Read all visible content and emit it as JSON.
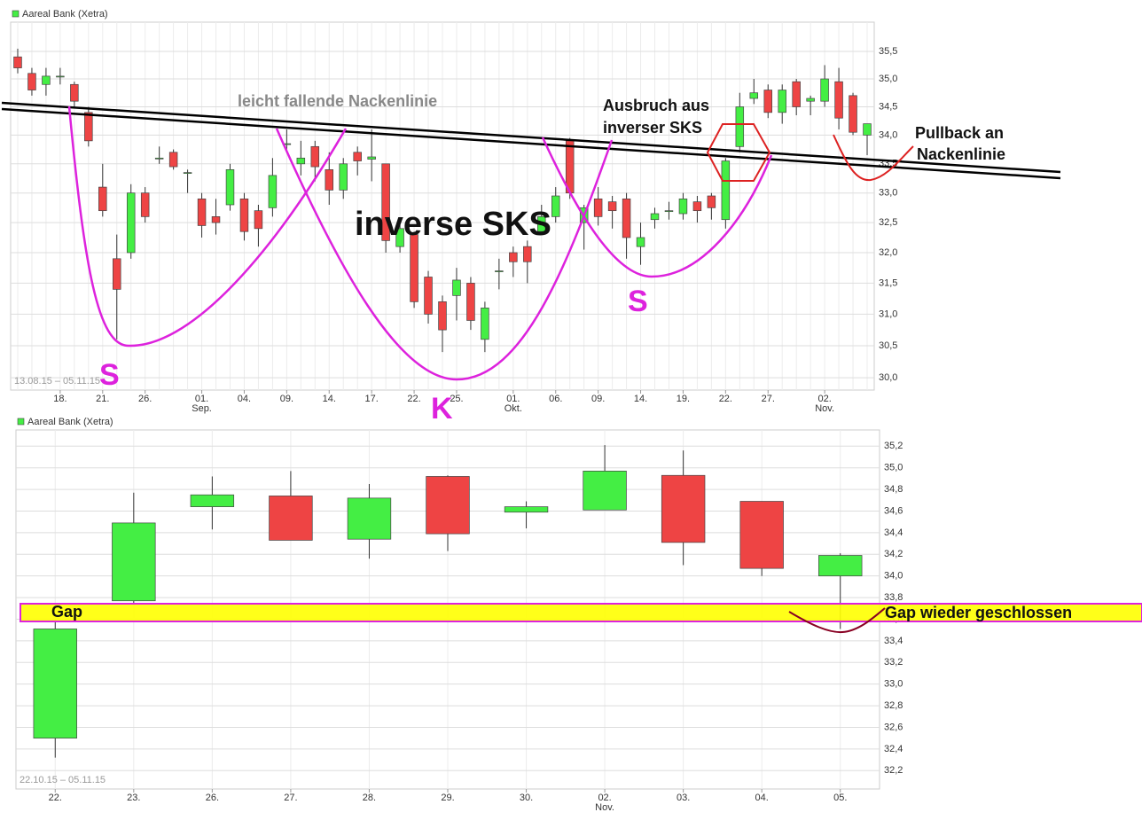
{
  "chart_data": [
    {
      "type": "candlestick",
      "legend": "Aareal Bank (Xetra)",
      "date_range": "13.08.15 – 05.11.15",
      "log": true,
      "grid": true,
      "up_color": "#44ee44",
      "down_color": "#ee4444",
      "ylim": [
        29.81,
        36.04
      ],
      "yticks": [
        {
          "value": 30.0,
          "label": "30,0"
        },
        {
          "value": 30.5,
          "label": "30,5"
        },
        {
          "value": 31.0,
          "label": "31,0"
        },
        {
          "value": 31.5,
          "label": "31,5"
        },
        {
          "value": 32.0,
          "label": "32,0"
        },
        {
          "value": 32.5,
          "label": "32,5"
        },
        {
          "value": 33.0,
          "label": "33,0"
        },
        {
          "value": 33.5,
          "label": "33,5"
        },
        {
          "value": 34.0,
          "label": "34,0"
        },
        {
          "value": 34.5,
          "label": "34,5"
        },
        {
          "value": 35.0,
          "label": "35,0"
        },
        {
          "value": 35.5,
          "label": "35,5"
        }
      ],
      "categories": [
        null,
        null,
        null,
        "18.",
        null,
        null,
        "21.",
        null,
        null,
        "26.",
        null,
        null,
        null,
        "01.",
        null,
        null,
        "04.",
        null,
        null,
        "09.",
        null,
        null,
        "14.",
        null,
        null,
        "17.",
        null,
        null,
        "22.",
        null,
        null,
        "25.",
        null,
        null,
        null,
        "01.",
        null,
        null,
        "06.",
        null,
        null,
        "09.",
        null,
        null,
        "14.",
        null,
        null,
        "19.",
        null,
        null,
        "22.",
        null,
        null,
        "27.",
        null,
        null,
        null,
        "02.",
        null,
        null,
        null
      ],
      "month_labels": [
        null,
        null,
        null,
        null,
        null,
        null,
        null,
        null,
        null,
        null,
        null,
        null,
        null,
        "Sep.",
        null,
        null,
        null,
        null,
        null,
        null,
        null,
        null,
        null,
        null,
        null,
        null,
        null,
        null,
        null,
        null,
        null,
        null,
        null,
        null,
        null,
        "Okt.",
        null,
        null,
        null,
        null,
        null,
        null,
        null,
        null,
        null,
        null,
        null,
        null,
        null,
        null,
        null,
        null,
        null,
        null,
        null,
        null,
        null,
        "Nov.",
        null,
        null,
        null
      ],
      "open": [
        35.4,
        35.1,
        34.9,
        35.05,
        34.9,
        34.4,
        33.1,
        31.9,
        32.0,
        33.0,
        33.6,
        33.7,
        33.35,
        32.9,
        32.6,
        32.8,
        32.9,
        32.7,
        32.75,
        33.85,
        33.5,
        33.8,
        33.4,
        33.05,
        33.7,
        33.58,
        33.5,
        32.1,
        32.3,
        31.6,
        31.2,
        31.3,
        31.5,
        30.6,
        31.7,
        32.0,
        32.1,
        32.35,
        32.6,
        33.9,
        32.5,
        32.9,
        32.85,
        32.9,
        32.1,
        32.55,
        32.7,
        32.65,
        32.85,
        32.95,
        32.55,
        33.8,
        34.65,
        34.8,
        34.4,
        34.95,
        34.6,
        34.6,
        34.95,
        34.7,
        34.0
      ],
      "high": [
        35.55,
        35.2,
        35.2,
        35.2,
        34.95,
        34.5,
        33.5,
        32.3,
        33.15,
        33.1,
        33.8,
        33.75,
        33.4,
        33.0,
        32.9,
        33.5,
        33.0,
        32.8,
        33.6,
        34.1,
        33.9,
        33.9,
        33.7,
        33.6,
        33.8,
        34.1,
        33.5,
        32.5,
        32.35,
        31.7,
        31.3,
        31.75,
        31.6,
        31.2,
        31.9,
        32.1,
        32.2,
        32.8,
        33.1,
        33.95,
        32.8,
        33.1,
        32.95,
        33.0,
        32.5,
        32.75,
        32.85,
        33.0,
        32.95,
        33.0,
        33.6,
        34.75,
        35.0,
        34.9,
        34.9,
        35.0,
        34.7,
        35.25,
        35.2,
        34.75,
        34.2
      ],
      "low": [
        35.1,
        34.7,
        34.7,
        34.9,
        34.5,
        33.8,
        32.6,
        30.6,
        31.9,
        32.5,
        33.5,
        33.4,
        33.0,
        32.25,
        32.3,
        32.7,
        32.2,
        32.1,
        32.6,
        33.7,
        33.3,
        33.2,
        32.8,
        32.9,
        33.3,
        33.2,
        32.0,
        32.0,
        31.1,
        30.85,
        30.4,
        30.9,
        30.75,
        30.4,
        31.4,
        31.6,
        31.5,
        32.3,
        32.5,
        32.9,
        32.05,
        32.45,
        32.4,
        31.9,
        31.8,
        32.4,
        32.55,
        32.55,
        32.5,
        32.55,
        32.4,
        33.7,
        34.55,
        34.3,
        34.2,
        34.35,
        34.35,
        34.5,
        34.1,
        34.0,
        33.65
      ],
      "close": [
        35.2,
        34.8,
        35.05,
        35.05,
        34.6,
        33.9,
        32.7,
        31.4,
        33.0,
        32.6,
        33.6,
        33.45,
        33.35,
        32.45,
        32.5,
        33.4,
        32.35,
        32.4,
        33.3,
        33.85,
        33.6,
        33.45,
        33.05,
        33.5,
        33.55,
        33.62,
        32.2,
        32.4,
        31.2,
        31.0,
        30.75,
        31.55,
        30.9,
        31.1,
        31.7,
        31.85,
        31.85,
        32.6,
        32.95,
        33.0,
        32.75,
        32.6,
        32.7,
        32.25,
        32.25,
        32.65,
        32.7,
        32.9,
        32.7,
        32.75,
        33.55,
        34.5,
        34.75,
        34.4,
        34.8,
        34.5,
        34.65,
        35.0,
        34.3,
        34.05,
        34.2
      ],
      "annotations": {
        "neckline": "leicht fallende Nackenlinie",
        "pattern": "inverse SKS",
        "breakout": [
          "Ausbruch aus",
          "inverser SKS"
        ],
        "pullback": [
          "Pullback an",
          "Nackenlinie"
        ],
        "left_shoulder": "S",
        "head": "K",
        "right_shoulder": "S"
      }
    },
    {
      "type": "candlestick",
      "legend": "Aareal Bank (Xetra)",
      "date_range": "22.10.15 – 05.11.15",
      "log": false,
      "grid": true,
      "up_color": "#44ee44",
      "down_color": "#ee4444",
      "ylim": [
        32.03,
        35.35
      ],
      "yticks": [
        {
          "value": 32.2,
          "label": "32,2"
        },
        {
          "value": 32.4,
          "label": "32,4"
        },
        {
          "value": 32.6,
          "label": "32,6"
        },
        {
          "value": 32.8,
          "label": "32,8"
        },
        {
          "value": 33.0,
          "label": "33,0"
        },
        {
          "value": 33.2,
          "label": "33,2"
        },
        {
          "value": 33.4,
          "label": "33,4"
        },
        {
          "value": 33.6,
          "label": "33,6"
        },
        {
          "value": 33.8,
          "label": "33,8"
        },
        {
          "value": 34.0,
          "label": "34,0"
        },
        {
          "value": 34.2,
          "label": "34,2"
        },
        {
          "value": 34.4,
          "label": "34,4"
        },
        {
          "value": 34.6,
          "label": "34,6"
        },
        {
          "value": 34.8,
          "label": "34,8"
        },
        {
          "value": 35.0,
          "label": "35,0"
        },
        {
          "value": 35.2,
          "label": "35,2"
        }
      ],
      "categories": [
        "22.",
        "23.",
        "26.",
        "27.",
        "28.",
        "29.",
        "30.",
        "02.",
        "03.",
        "04.",
        "05."
      ],
      "month_labels": [
        null,
        null,
        null,
        null,
        null,
        null,
        null,
        "Nov.",
        null,
        null,
        null
      ],
      "open": [
        32.5,
        33.77,
        34.64,
        34.74,
        34.34,
        34.92,
        34.59,
        34.61,
        34.93,
        34.69,
        34.0
      ],
      "high": [
        33.59,
        34.77,
        34.92,
        34.97,
        34.85,
        34.93,
        34.69,
        35.21,
        35.16,
        34.69,
        34.21
      ],
      "low": [
        32.32,
        33.75,
        34.43,
        34.33,
        34.16,
        34.23,
        34.44,
        34.61,
        34.1,
        34.0,
        33.51
      ],
      "close": [
        33.51,
        34.49,
        34.75,
        34.33,
        34.72,
        34.39,
        34.64,
        34.97,
        34.31,
        34.07,
        34.19
      ],
      "annotations": {
        "gap": "Gap",
        "gap_closed": "Gap wieder geschlossen"
      }
    }
  ]
}
